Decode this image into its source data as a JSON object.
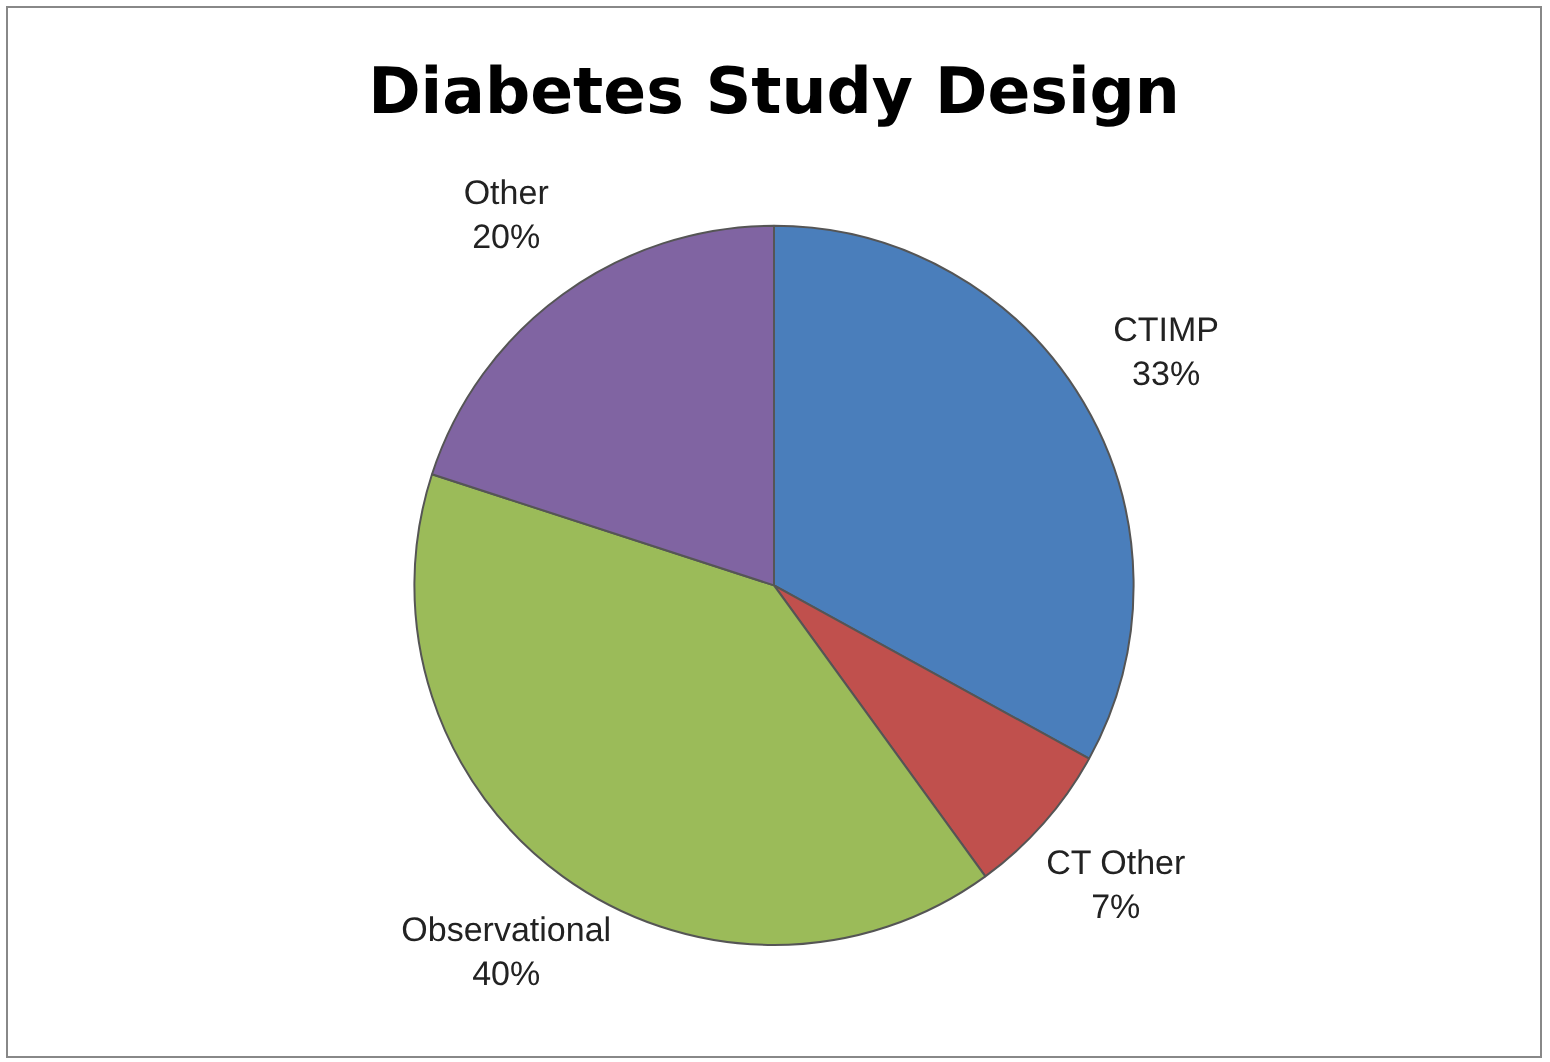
{
  "chart_data": {
    "type": "pie",
    "title": "Diabetes Study Design",
    "categories": [
      "CTIMP",
      "CT Other",
      "Observational",
      "Other"
    ],
    "values": [
      33,
      7,
      40,
      20
    ],
    "colors": [
      "#4a7ebb",
      "#c0504d",
      "#9bbb59",
      "#8064a2"
    ],
    "value_labels": [
      "33%",
      "7%",
      "40%",
      "20%"
    ],
    "legend": false
  }
}
